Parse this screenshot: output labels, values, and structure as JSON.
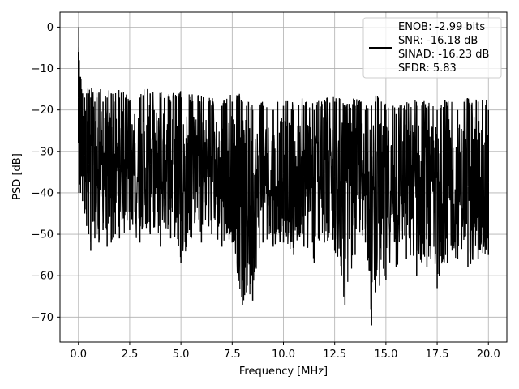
{
  "chart_data": {
    "type": "line",
    "xlabel": "Frequency [MHz]",
    "ylabel": "PSD [dB]",
    "xlim": [
      -0.9,
      20.9
    ],
    "ylim": [
      -76,
      3.6
    ],
    "xticks": [
      0.0,
      2.5,
      5.0,
      7.5,
      10.0,
      12.5,
      15.0,
      17.5,
      20.0
    ],
    "xtick_labels": [
      "0.0",
      "2.5",
      "5.0",
      "7.5",
      "10.0",
      "12.5",
      "15.0",
      "17.5",
      "20.0"
    ],
    "yticks": [
      0,
      -10,
      -20,
      -30,
      -40,
      -50,
      -60,
      -70
    ],
    "ytick_labels": [
      "0",
      "−10",
      "−20",
      "−30",
      "−40",
      "−50",
      "−60",
      "−70"
    ],
    "grid": true,
    "line_color": "#000000",
    "legend": {
      "placement": "top-right",
      "entries": [
        "ENOB: -2.99 bits",
        "SNR: -16.18 dB",
        "SINAD: -16.23 dB",
        "SFDR: 5.83"
      ]
    },
    "series": [
      {
        "x": [
          0.0,
          0.02,
          0.04,
          0.06,
          0.08,
          0.1,
          0.15,
          0.2,
          0.3,
          0.4,
          0.5,
          0.6,
          0.7,
          0.8,
          0.9,
          1.0,
          1.2,
          1.4,
          1.6,
          1.8,
          2.0,
          2.5,
          3.0,
          3.5,
          4.0,
          4.5,
          5.0,
          5.5,
          6.0,
          6.5,
          7.0,
          7.5,
          8.0,
          8.2,
          8.5,
          9.0,
          9.5,
          10.0,
          10.5,
          11.0,
          11.5,
          12.0,
          12.5,
          13.0,
          13.5,
          14.0,
          14.3,
          14.5,
          15.0,
          15.5,
          16.0,
          16.5,
          17.0,
          17.5,
          18.0,
          18.5,
          19.0,
          19.5,
          20.0
        ],
        "y_max": [
          -6,
          0,
          -8,
          -12,
          -14,
          -12,
          -15,
          -16,
          -17,
          -16,
          -16,
          -17,
          -16,
          -18,
          -17,
          -16,
          -18,
          -17,
          -16,
          -18,
          -17,
          -18,
          -17,
          -16,
          -17,
          -18,
          -17,
          -18,
          -18,
          -19,
          -19,
          -18,
          -18,
          -19,
          -20,
          -19,
          -20,
          -19,
          -20,
          -19,
          -20,
          -19,
          -18,
          -20,
          -19,
          -20,
          -19,
          -18,
          -20,
          -21,
          -20,
          -19,
          -20,
          -20,
          -19,
          -20,
          -19,
          -18,
          -20
        ],
        "y_min": [
          -28,
          -40,
          -35,
          -38,
          -34,
          -40,
          -36,
          -42,
          -45,
          -48,
          -50,
          -54,
          -47,
          -51,
          -50,
          -52,
          -49,
          -53,
          -52,
          -50,
          -51,
          -49,
          -52,
          -50,
          -53,
          -51,
          -57,
          -51,
          -52,
          -50,
          -53,
          -52,
          -67,
          -64,
          -66,
          -52,
          -53,
          -52,
          -55,
          -53,
          -57,
          -52,
          -54,
          -67,
          -55,
          -52,
          -72,
          -64,
          -61,
          -58,
          -56,
          -60,
          -58,
          -63,
          -57,
          -56,
          -58,
          -56,
          -55
        ]
      }
    ]
  }
}
